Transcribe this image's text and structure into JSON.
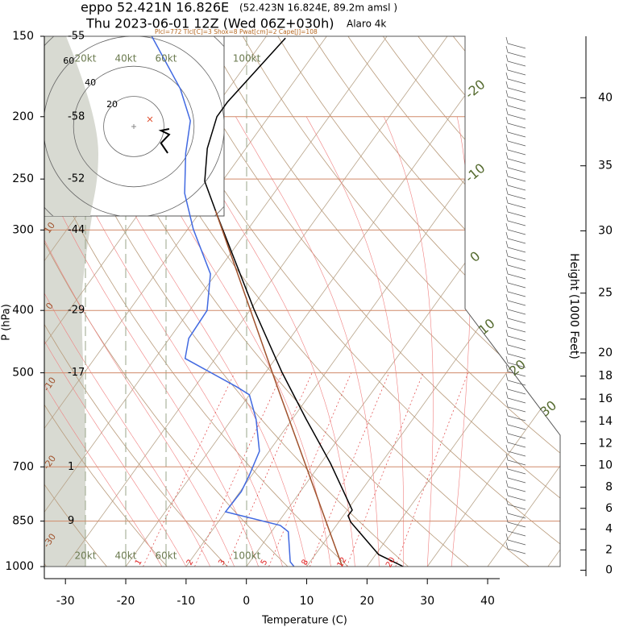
{
  "header": {
    "station": "eppo 52.421N 16.826E",
    "coords": "(52.423N 16.824E,  89.2m amsl )",
    "time": "Thu 2023-06-01 12Z (Wed 06Z+030h)",
    "model": "Alaro 4k",
    "indices": "Plcl=772 Tlcl[C]=3 Shox=8 Pwat[cm]=2 Cape[J]=108"
  },
  "chart_data": {
    "type": "skewt",
    "xlabel": "Temperature (C)",
    "ylabel": "P (hPa)",
    "y2label": "Height (1000 Feet)",
    "xlim": [
      -33.5,
      42
    ],
    "xticks": [
      -30,
      -20,
      -10,
      0,
      10,
      20,
      30,
      40
    ],
    "ylim": [
      1000,
      150
    ],
    "yticks": [
      150,
      200,
      250,
      300,
      400,
      500,
      700,
      850,
      1000
    ],
    "log_y": true,
    "y2ticks": [
      0,
      2,
      4,
      6,
      8,
      10,
      12,
      14,
      16,
      18,
      20,
      25,
      30,
      35,
      40
    ],
    "level_labels": [
      -55,
      -58,
      -52,
      -44,
      -29,
      -17,
      1,
      9,
      null
    ],
    "isotherm_labels": [
      -20,
      -10,
      0,
      10,
      20,
      30
    ],
    "side_labels": [
      10,
      0,
      -10,
      -20,
      -30
    ],
    "mixing_ratios": [
      1,
      2,
      3,
      5,
      8,
      12,
      20
    ],
    "speed_lines": [
      {
        "value": 20,
        "label": "20kt"
      },
      {
        "value": 40,
        "label": "40kt"
      },
      {
        "value": 60,
        "label": "60kt"
      },
      {
        "value": 100,
        "label": "100kt"
      }
    ],
    "series": [
      {
        "color": "#000000",
        "y": [
          1000,
          958,
          853,
          834,
          817,
          691,
          590,
          499,
          398,
          285,
          252,
          224,
          200,
          190,
          151
        ],
        "x": [
          26.0,
          20.5,
          12.0,
          10.8,
          10.8,
          1.6,
          -7.7,
          -17.3,
          -29.5,
          -46.7,
          -52.9,
          -56.4,
          -58.6,
          -58.6,
          -56.6
        ]
      },
      {
        "color": "#4169e1",
        "y": [
          1000,
          983,
          883,
          863,
          822,
          765,
          722,
          662,
          590,
          541,
          526,
          475,
          442,
          400,
          351,
          299,
          263,
          228,
          203,
          181,
          150
        ],
        "x": [
          7.9,
          6.7,
          2.8,
          0.7,
          -10.0,
          -9.8,
          -10.4,
          -11.6,
          -16.0,
          -20.0,
          -23.0,
          -35.0,
          -36.8,
          -37.1,
          -40.9,
          -49.1,
          -54.8,
          -59.4,
          -62.5,
          -68.0,
          -79.0
        ]
      },
      {
        "color": "#a0522d",
        "y": [
          1000,
          526,
          280
        ],
        "x": [
          15.9,
          -16.3,
          -47.6
        ]
      }
    ],
    "hodograph": {
      "rings": [
        20,
        40,
        60
      ],
      "color": "#000000",
      "u": [
        23.5,
        18,
        23.5,
        18,
        22.5
      ],
      "v": [
        -1.6,
        -2.7,
        -5.3,
        -11,
        -17.6
      ]
    }
  }
}
